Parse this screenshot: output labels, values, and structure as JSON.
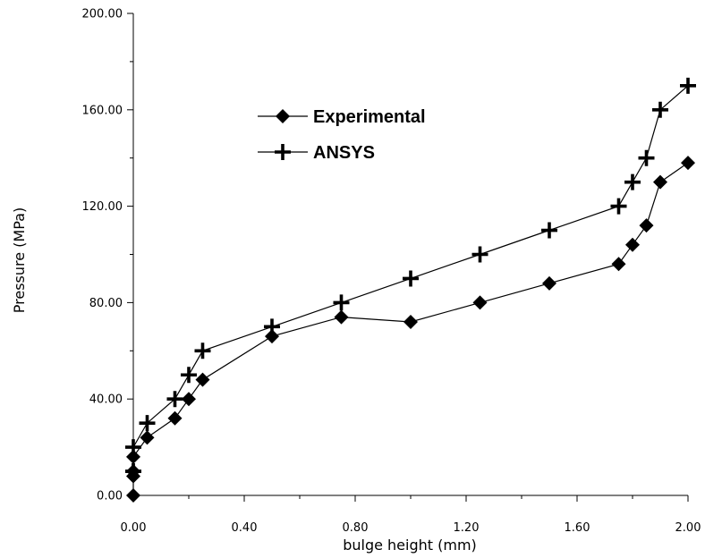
{
  "chart_data": {
    "type": "line",
    "xlabel": "bulge height (mm)",
    "ylabel": "Pressure (MPa)",
    "xlim": [
      0,
      2
    ],
    "ylim": [
      0,
      200
    ],
    "x_ticks": [
      "0.00",
      "0.40",
      "0.80",
      "1.20",
      "1.60",
      "2.00"
    ],
    "y_ticks": [
      "0.00",
      "40.00",
      "80.00",
      "120.00",
      "160.00",
      "200.00"
    ],
    "grid": false,
    "legend_position": "upper-center",
    "series": [
      {
        "name": "Experimental",
        "marker": "diamond",
        "color": "#000000",
        "x": [
          0.0,
          0.0,
          0.0,
          0.0,
          0.05,
          0.15,
          0.2,
          0.25,
          0.5,
          0.75,
          1.0,
          1.25,
          1.5,
          1.75,
          1.8,
          1.85,
          1.9,
          2.0
        ],
        "y": [
          0,
          8,
          10,
          16,
          24,
          32,
          40,
          48,
          66,
          74,
          72,
          80,
          88,
          96,
          104,
          112,
          130,
          138
        ]
      },
      {
        "name": "ANSYS",
        "marker": "plus",
        "color": "#000000",
        "x": [
          0.0,
          0.0,
          0.0,
          0.05,
          0.15,
          0.2,
          0.25,
          0.5,
          0.75,
          1.0,
          1.25,
          1.5,
          1.75,
          1.8,
          1.85,
          1.9,
          2.0
        ],
        "y": [
          10,
          10,
          20,
          30,
          40,
          50,
          60,
          70,
          80,
          90,
          100,
          110,
          120,
          130,
          140,
          160,
          170
        ]
      }
    ]
  }
}
